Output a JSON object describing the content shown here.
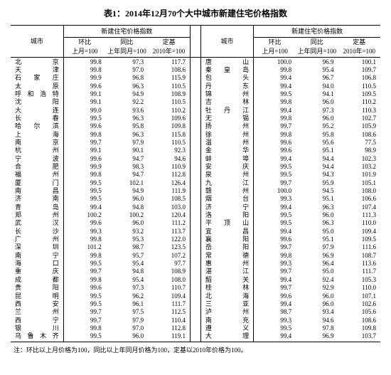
{
  "title": "表1：2014年12月70个大中城市新建住宅价格指数",
  "headers": {
    "city": "城市",
    "group": "新建住宅价格指数",
    "mom": "环比",
    "mom_sub": "上月=100",
    "yoy": "同比",
    "yoy_sub": "上年同月=100",
    "fixed": "定基",
    "fixed_sub": "2010年=100"
  },
  "footnote": "注：环比以上月价格为100，同比以上年同月价格为100，定基以2010年价格为100。",
  "rows": [
    {
      "c1": "北京",
      "v1": [
        99.8,
        97.3,
        117.7
      ],
      "c2": "唐山",
      "v2": [
        100.0,
        96.9,
        100.1
      ]
    },
    {
      "c1": "天津",
      "v1": [
        99.8,
        97.0,
        108.6
      ],
      "c2": "秦皇岛",
      "v2": [
        99.8,
        95.4,
        109.7
      ]
    },
    {
      "c1": "石家庄",
      "v1": [
        99.9,
        96.8,
        115.9
      ],
      "c2": "包头",
      "v2": [
        99.4,
        96.7,
        106.8
      ]
    },
    {
      "c1": "太原",
      "v1": [
        99.6,
        96.3,
        110.5
      ],
      "c2": "丹东",
      "v2": [
        99.4,
        94.0,
        110.5
      ]
    },
    {
      "c1": "呼和浩特",
      "v1": [
        99.1,
        94.9,
        108.9
      ],
      "c2": "锦州",
      "v2": [
        99.5,
        94.1,
        109.5
      ]
    },
    {
      "c1": "沈阳",
      "v1": [
        99.1,
        92.2,
        110.5
      ],
      "c2": "吉林",
      "v2": [
        99.8,
        96.0,
        110.2
      ]
    },
    {
      "c1": "大连",
      "v1": [
        99.0,
        93.6,
        110.2
      ],
      "c2": "牡丹江",
      "v2": [
        99.4,
        97.3,
        110.3
      ]
    },
    {
      "c1": "长春",
      "v1": [
        99.5,
        96.3,
        109.6
      ],
      "c2": "无锡",
      "v2": [
        99.8,
        96.0,
        102.7
      ]
    },
    {
      "c1": "哈尔滨",
      "v1": [
        99.6,
        95.8,
        109.8
      ],
      "c2": "扬州",
      "v2": [
        99.7,
        95.2,
        105.9
      ]
    },
    {
      "c1": "上海",
      "v1": [
        99.8,
        96.3,
        115.8
      ],
      "c2": "徐州",
      "v2": [
        99.8,
        95.8,
        108.6
      ]
    },
    {
      "c1": "南京",
      "v1": [
        99.7,
        97.9,
        110.5
      ],
      "c2": "温州",
      "v2": [
        99.6,
        95.6,
        77.5
      ]
    },
    {
      "c1": "杭州",
      "v1": [
        99.1,
        90.1,
        92.3
      ],
      "c2": "金华",
      "v2": [
        99.6,
        95.1,
        98.9
      ]
    },
    {
      "c1": "宁波",
      "v1": [
        99.6,
        94.7,
        94.6
      ],
      "c2": "蚌埠",
      "v2": [
        99.4,
        94.4,
        102.3
      ]
    },
    {
      "c1": "合肥",
      "v1": [
        99.9,
        98.3,
        110.9
      ],
      "c2": "安庆",
      "v2": [
        99.5,
        94.4,
        103.2
      ]
    },
    {
      "c1": "福州",
      "v1": [
        99.8,
        94.7,
        112.8
      ],
      "c2": "泉州",
      "v2": [
        99.5,
        94.3,
        101.9
      ]
    },
    {
      "c1": "厦门",
      "v1": [
        99.5,
        102.1,
        126.4
      ],
      "c2": "九江",
      "v2": [
        99.7,
        95.9,
        105.1
      ]
    },
    {
      "c1": "南昌",
      "v1": [
        99.5,
        94.9,
        111.9
      ],
      "c2": "赣州",
      "v2": [
        100.0,
        94.5,
        108.0
      ]
    },
    {
      "c1": "济南",
      "v1": [
        99.5,
        96.0,
        108.5
      ],
      "c2": "烟台",
      "v2": [
        99.3,
        95.1,
        106.6
      ]
    },
    {
      "c1": "青岛",
      "v1": [
        99.4,
        94.8,
        103.0
      ],
      "c2": "济宁",
      "v2": [
        99.4,
        96.3,
        107.4
      ]
    },
    {
      "c1": "郑州",
      "v1": [
        100.2,
        100.2,
        120.4
      ],
      "c2": "洛阳",
      "v2": [
        99.5,
        96.0,
        111.3
      ]
    },
    {
      "c1": "武汉",
      "v1": [
        99.6,
        96.0,
        111.2
      ],
      "c2": "平顶山",
      "v2": [
        99.5,
        96.3,
        110.0
      ]
    },
    {
      "c1": "长沙",
      "v1": [
        99.3,
        93.2,
        113.7
      ],
      "c2": "宜昌",
      "v2": [
        99.4,
        95.0,
        109.4
      ]
    },
    {
      "c1": "广州",
      "v1": [
        99.8,
        95.3,
        122.0
      ],
      "c2": "襄阳",
      "v2": [
        99.6,
        95.1,
        109.5
      ]
    },
    {
      "c1": "深圳",
      "v1": [
        101.2,
        98.7,
        123.5
      ],
      "c2": "岳阳",
      "v2": [
        99.7,
        97.9,
        111.6
      ]
    },
    {
      "c1": "南宁",
      "v1": [
        99.8,
        95.7,
        107.2
      ],
      "c2": "常德",
      "v2": [
        99.8,
        96.9,
        108.7
      ]
    },
    {
      "c1": "海口",
      "v1": [
        99.5,
        95.4,
        97.7
      ],
      "c2": "惠州",
      "v2": [
        99.3,
        96.4,
        113.6
      ]
    },
    {
      "c1": "重庆",
      "v1": [
        99.7,
        94.8,
        108.9
      ],
      "c2": "湛江",
      "v2": [
        99.7,
        95.0,
        111.7
      ]
    },
    {
      "c1": "成都",
      "v1": [
        99.8,
        95.4,
        108.0
      ],
      "c2": "韶关",
      "v2": [
        99.4,
        92.4,
        105.3
      ]
    },
    {
      "c1": "贵阳",
      "v1": [
        99.6,
        97.3,
        110.7
      ],
      "c2": "桂林",
      "v2": [
        99.7,
        92.9,
        110.0
      ]
    },
    {
      "c1": "昆明",
      "v1": [
        99.5,
        96.2,
        109.4
      ],
      "c2": "北海",
      "v2": [
        99.6,
        96.0,
        107.1
      ]
    },
    {
      "c1": "西安",
      "v1": [
        99.5,
        96.1,
        111.7
      ],
      "c2": "三亚",
      "v2": [
        99.4,
        96.0,
        102.6
      ]
    },
    {
      "c1": "兰州",
      "v1": [
        99.7,
        97.5,
        112.5
      ],
      "c2": "泸州",
      "v2": [
        98.7,
        93.4,
        105.6
      ]
    },
    {
      "c1": "西宁",
      "v1": [
        99.7,
        97.9,
        110.4
      ],
      "c2": "南充",
      "v2": [
        99.3,
        94.6,
        108.6
      ]
    },
    {
      "c1": "银川",
      "v1": [
        99.8,
        97.0,
        112.8
      ],
      "c2": "遵义",
      "v2": [
        99.5,
        97.8,
        109.8
      ]
    },
    {
      "c1": "乌鲁木齐",
      "v1": [
        99.5,
        96.0,
        119.1
      ],
      "c2": "大理",
      "v2": [
        99.4,
        96.9,
        103.7
      ]
    }
  ]
}
